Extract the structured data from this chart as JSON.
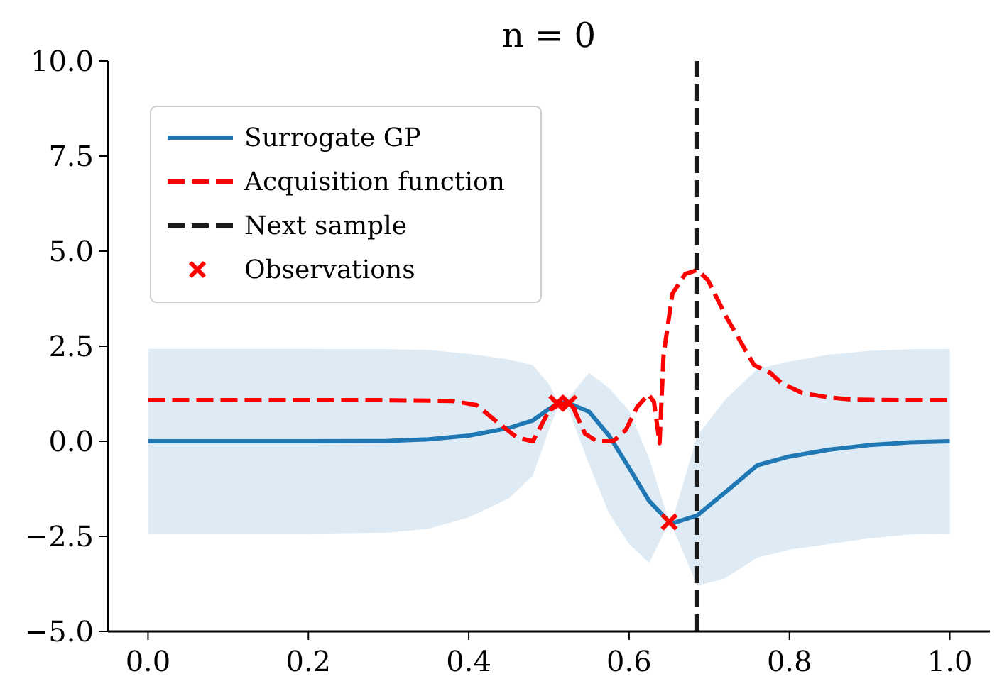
{
  "chart_data": {
    "type": "line",
    "title": "n = 0",
    "xlim": [
      -0.05,
      1.05
    ],
    "ylim": [
      -5,
      10
    ],
    "xticks": [
      {
        "value": 0,
        "label": "0.0"
      },
      {
        "value": 0.2,
        "label": "0.2"
      },
      {
        "value": 0.4,
        "label": "0.4"
      },
      {
        "value": 0.6,
        "label": "0.6"
      },
      {
        "value": 0.8,
        "label": "0.8"
      },
      {
        "value": 1,
        "label": "1.0"
      }
    ],
    "yticks": [
      {
        "value": -5,
        "label": "−5.0"
      },
      {
        "value": -2.5,
        "label": "−2.5"
      },
      {
        "value": 0,
        "label": "0.0"
      },
      {
        "value": 2.5,
        "label": "2.5"
      },
      {
        "value": 5,
        "label": "5.0"
      },
      {
        "value": 7.5,
        "label": "7.5"
      },
      {
        "value": 10,
        "label": "10.0"
      }
    ],
    "legend": "top left",
    "grid": false,
    "series": [
      {
        "name": "Surrogate GP",
        "color": "#1f77b4",
        "line_style": "solid",
        "x": [
          0,
          0.1,
          0.2,
          0.3,
          0.35,
          0.4,
          0.45,
          0.48,
          0.5,
          0.51,
          0.52,
          0.525,
          0.55,
          0.575,
          0.6,
          0.625,
          0.65,
          0.655,
          0.685,
          0.72,
          0.76,
          0.8,
          0.85,
          0.9,
          0.95,
          1.0
        ],
        "values": [
          0,
          0,
          0,
          0.01,
          0.05,
          0.15,
          0.35,
          0.55,
          0.85,
          0.98,
          1.02,
          1.0,
          0.78,
          0.15,
          -0.7,
          -1.57,
          -2.12,
          -2.15,
          -1.95,
          -1.34,
          -0.63,
          -0.4,
          -0.22,
          -0.1,
          -0.03,
          0
        ],
        "upper": [
          2.43,
          2.43,
          2.43,
          2.42,
          2.4,
          2.3,
          2.15,
          2.0,
          1.5,
          1.1,
          1.2,
          1.15,
          1.8,
          1.4,
          0.8,
          -0.45,
          -2.12,
          -2.0,
          0.15,
          1.1,
          1.9,
          2.1,
          2.28,
          2.38,
          2.42,
          2.43
        ],
        "lower": [
          -2.43,
          -2.43,
          -2.43,
          -2.4,
          -2.3,
          -2.0,
          -1.5,
          -0.9,
          0.3,
          0.85,
          0.85,
          0.8,
          -0.6,
          -1.9,
          -2.7,
          -3.2,
          -2.12,
          -2.3,
          -3.8,
          -3.6,
          -3.06,
          -2.85,
          -2.7,
          -2.55,
          -2.45,
          -2.43
        ]
      },
      {
        "name": "Acquisition function",
        "color": "#ff0000",
        "line_style": "dashed",
        "x": [
          0,
          0.1,
          0.2,
          0.3,
          0.38,
          0.41,
          0.43,
          0.46,
          0.48,
          0.5,
          0.515,
          0.53,
          0.545,
          0.56,
          0.58,
          0.596,
          0.61,
          0.624,
          0.631,
          0.638,
          0.643,
          0.654,
          0.67,
          0.685,
          0.698,
          0.721,
          0.756,
          0.776,
          0.79,
          0.816,
          0.85,
          0.876,
          0.9,
          0.95,
          1.0
        ],
        "values": [
          1.08,
          1.08,
          1.08,
          1.08,
          1.06,
          0.95,
          0.6,
          0.1,
          0,
          0.8,
          1.0,
          0.9,
          0.2,
          0,
          0,
          0.3,
          0.9,
          1.23,
          1.04,
          -0.05,
          2.28,
          3.88,
          4.4,
          4.5,
          4.25,
          3.28,
          2.0,
          1.8,
          1.53,
          1.27,
          1.15,
          1.1,
          1.09,
          1.08,
          1.08
        ]
      },
      {
        "name": "Next sample",
        "color": "#1a1a1a",
        "line_style": "dashed",
        "x": [
          0.685,
          0.685
        ],
        "values": [
          -5,
          10
        ]
      },
      {
        "name": "Observations",
        "type": "scatter",
        "color": "#ff0000",
        "marker": "cross",
        "x": [
          0.51,
          0.525,
          0.65
        ],
        "values": [
          1.0,
          1.0,
          -2.12
        ]
      }
    ]
  }
}
